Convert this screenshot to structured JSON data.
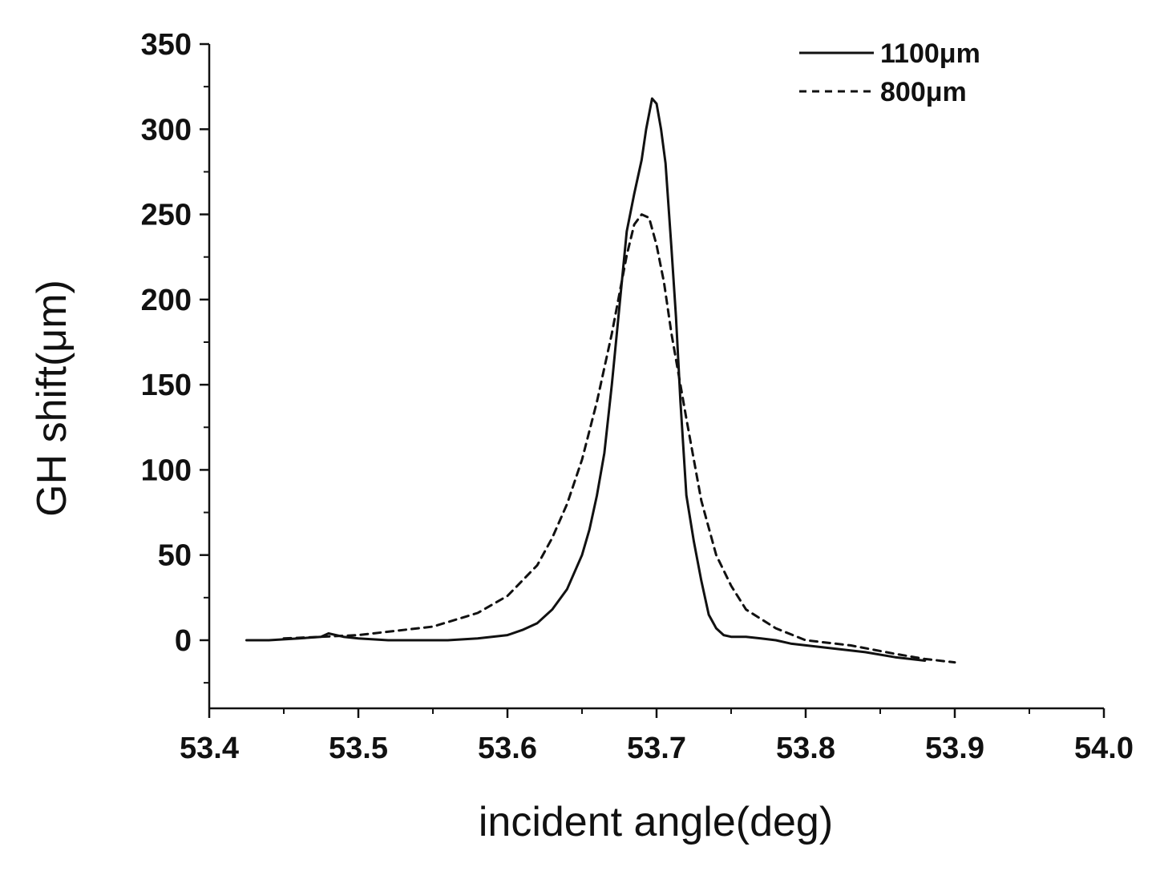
{
  "chart_data": {
    "type": "line",
    "xlabel": "incident angle(deg)",
    "ylabel": "GH shift(μm)",
    "xlim": [
      53.4,
      54.0
    ],
    "ylim": [
      -40,
      350
    ],
    "x_ticks": [
      53.4,
      53.5,
      53.6,
      53.7,
      53.8,
      53.9,
      54.0
    ],
    "x_tick_labels": [
      "53.4",
      "53.5",
      "53.6",
      "53.7",
      "53.8",
      "53.9",
      "54.0"
    ],
    "y_ticks": [
      0,
      50,
      100,
      150,
      200,
      250,
      300,
      350
    ],
    "y_tick_labels": [
      "0",
      "50",
      "100",
      "150",
      "200",
      "250",
      "300",
      "350"
    ],
    "grid": false,
    "legend_position": "top-right",
    "series": [
      {
        "name": "1100μm",
        "style": "solid",
        "color": "#111111",
        "x": [
          53.425,
          53.44,
          53.46,
          53.475,
          53.48,
          53.49,
          53.5,
          53.52,
          53.54,
          53.56,
          53.58,
          53.6,
          53.61,
          53.62,
          53.63,
          53.64,
          53.65,
          53.655,
          53.66,
          53.665,
          53.67,
          53.675,
          53.68,
          53.685,
          53.69,
          53.693,
          53.697,
          53.7,
          53.703,
          53.706,
          53.71,
          53.713,
          53.716,
          53.72,
          53.725,
          53.73,
          53.735,
          53.74,
          53.745,
          53.75,
          53.76,
          53.77,
          53.78,
          53.79,
          53.8,
          53.81,
          53.82,
          53.84,
          53.86,
          53.88
        ],
        "y": [
          0,
          0,
          1,
          2,
          4,
          2,
          1,
          0,
          0,
          0,
          1,
          3,
          6,
          10,
          18,
          30,
          50,
          65,
          85,
          110,
          150,
          195,
          240,
          262,
          282,
          300,
          318,
          315,
          300,
          280,
          230,
          190,
          140,
          85,
          58,
          35,
          15,
          7,
          3,
          2,
          2,
          1,
          0,
          -2,
          -3,
          -4,
          -5,
          -7,
          -10,
          -12
        ]
      },
      {
        "name": "800μm",
        "style": "dashed",
        "color": "#111111",
        "x": [
          53.45,
          53.5,
          53.55,
          53.58,
          53.6,
          53.62,
          53.63,
          53.64,
          53.65,
          53.66,
          53.67,
          53.68,
          53.685,
          53.69,
          53.695,
          53.7,
          53.705,
          53.71,
          53.72,
          53.73,
          53.74,
          53.75,
          53.76,
          53.78,
          53.8,
          53.83,
          53.86,
          53.88,
          53.9
        ],
        "y": [
          1,
          3,
          8,
          16,
          26,
          44,
          60,
          80,
          106,
          140,
          180,
          226,
          244,
          250,
          248,
          232,
          210,
          180,
          130,
          82,
          50,
          32,
          18,
          7,
          0,
          -3,
          -8,
          -11,
          -13
        ]
      }
    ]
  }
}
